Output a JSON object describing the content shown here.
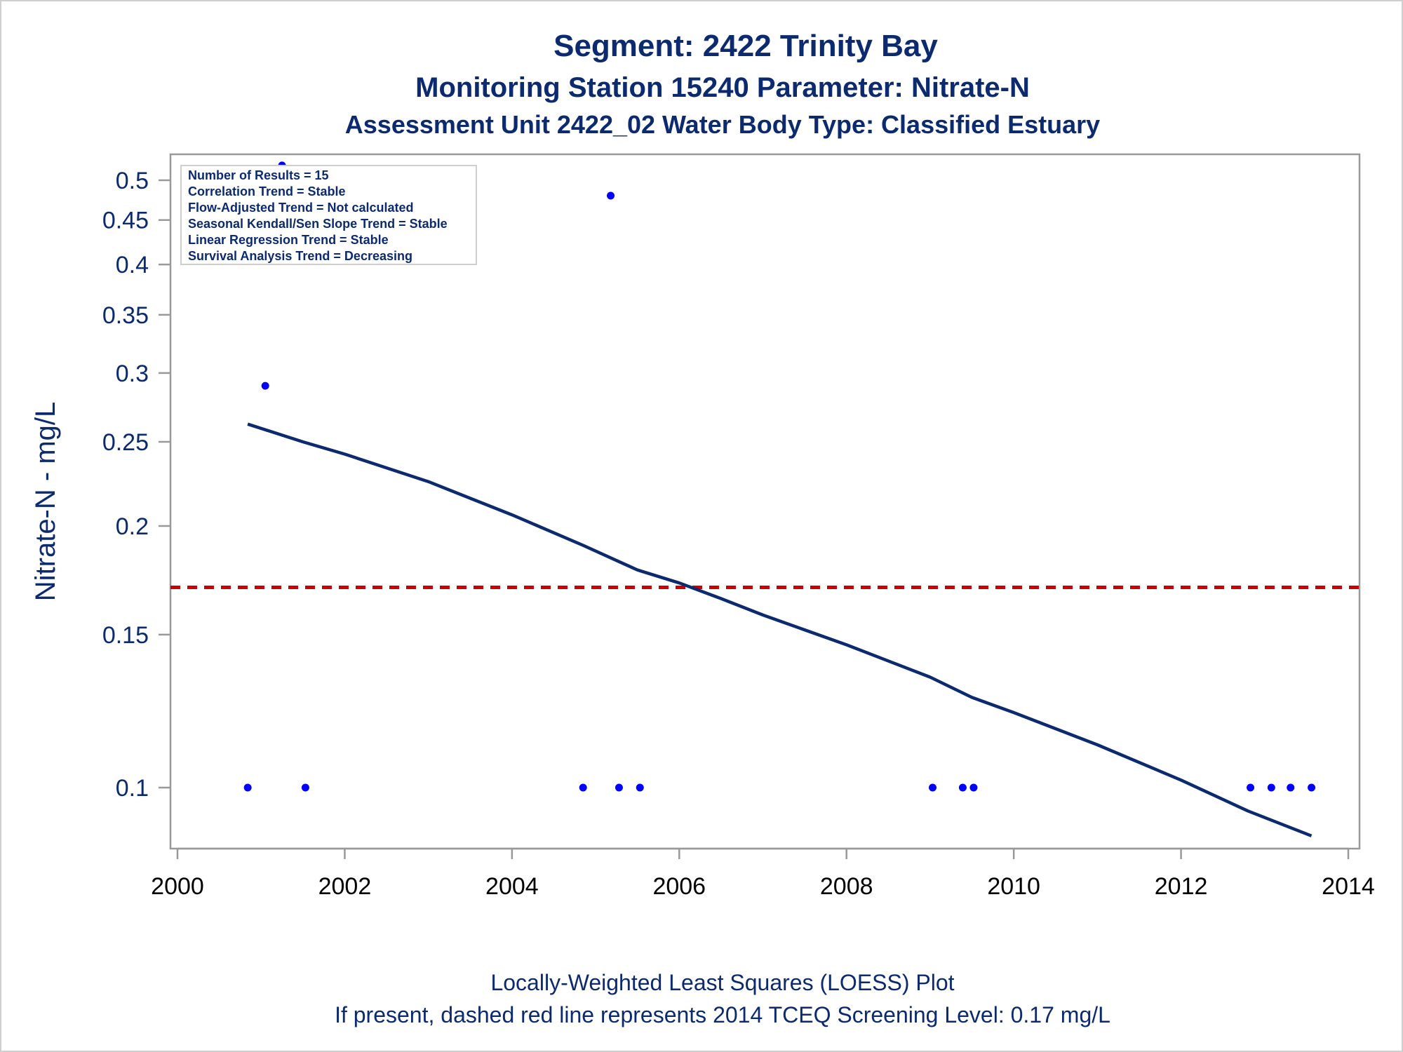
{
  "titles": {
    "line1": "Segment: 2422  Trinity Bay",
    "line2": "Monitoring Station 15240 Parameter: Nitrate-N",
    "line3": "Assessment Unit 2422_02   Water Body Type: Classified Estuary"
  },
  "footnotes": {
    "line1": "Locally-Weighted Least Squares (LOESS) Plot",
    "line2": "If present, dashed red line represents 2014 TCEQ Screening Level: 0.17 mg/L"
  },
  "stats_box": [
    "Number of Results = 15",
    "Correlation Trend = Stable",
    "Flow-Adjusted Trend = Not calculated",
    "Seasonal Kendall/Sen Slope Trend = Stable",
    "Linear Regression Trend = Stable",
    "Survival Analysis Trend = Decreasing"
  ],
  "colors": {
    "text": "#0b2a6f",
    "points": "#0000ff",
    "loess": "#0b2a6f",
    "screening": "#cc0000",
    "axis": "#999999"
  },
  "chart_data": {
    "type": "scatter",
    "ylabel": "Nitrate-N - mg/L",
    "xlabel": "",
    "y_scale": "log",
    "xlim": [
      2000,
      2014
    ],
    "ylim": [
      0.087,
      0.53
    ],
    "x_ticks": [
      2000,
      2002,
      2004,
      2006,
      2008,
      2010,
      2012,
      2014
    ],
    "y_ticks": [
      0.1,
      0.15,
      0.2,
      0.25,
      0.3,
      0.35,
      0.4,
      0.45,
      0.5
    ],
    "y_tick_labels": [
      "0.1",
      "0.15",
      "0.2",
      "0.25",
      "0.3",
      "0.35",
      "0.4",
      "0.45",
      "0.5"
    ],
    "points": [
      {
        "x": 2000.84,
        "y": 0.1
      },
      {
        "x": 2001.05,
        "y": 0.29
      },
      {
        "x": 2001.25,
        "y": 0.52
      },
      {
        "x": 2001.53,
        "y": 0.1
      },
      {
        "x": 2004.85,
        "y": 0.1
      },
      {
        "x": 2005.18,
        "y": 0.48
      },
      {
        "x": 2005.28,
        "y": 0.1
      },
      {
        "x": 2005.53,
        "y": 0.1
      },
      {
        "x": 2009.03,
        "y": 0.1
      },
      {
        "x": 2009.39,
        "y": 0.1
      },
      {
        "x": 2009.52,
        "y": 0.1
      },
      {
        "x": 2012.83,
        "y": 0.1
      },
      {
        "x": 2013.08,
        "y": 0.1
      },
      {
        "x": 2013.31,
        "y": 0.1
      },
      {
        "x": 2013.56,
        "y": 0.1
      }
    ],
    "loess": {
      "x": [
        2000.84,
        2001.5,
        2002.0,
        2003.0,
        2004.0,
        2004.85,
        2005.5,
        2006.0,
        2006.5,
        2007.0,
        2008.0,
        2009.0,
        2009.5,
        2010.0,
        2011.0,
        2012.0,
        2012.8,
        2013.56
      ],
      "y": [
        0.262,
        0.25,
        0.242,
        0.225,
        0.206,
        0.19,
        0.178,
        0.172,
        0.165,
        0.158,
        0.146,
        0.134,
        0.127,
        0.122,
        0.112,
        0.102,
        0.094,
        0.088
      ]
    },
    "reference_line": {
      "y": 0.17,
      "style": "dashed"
    }
  }
}
